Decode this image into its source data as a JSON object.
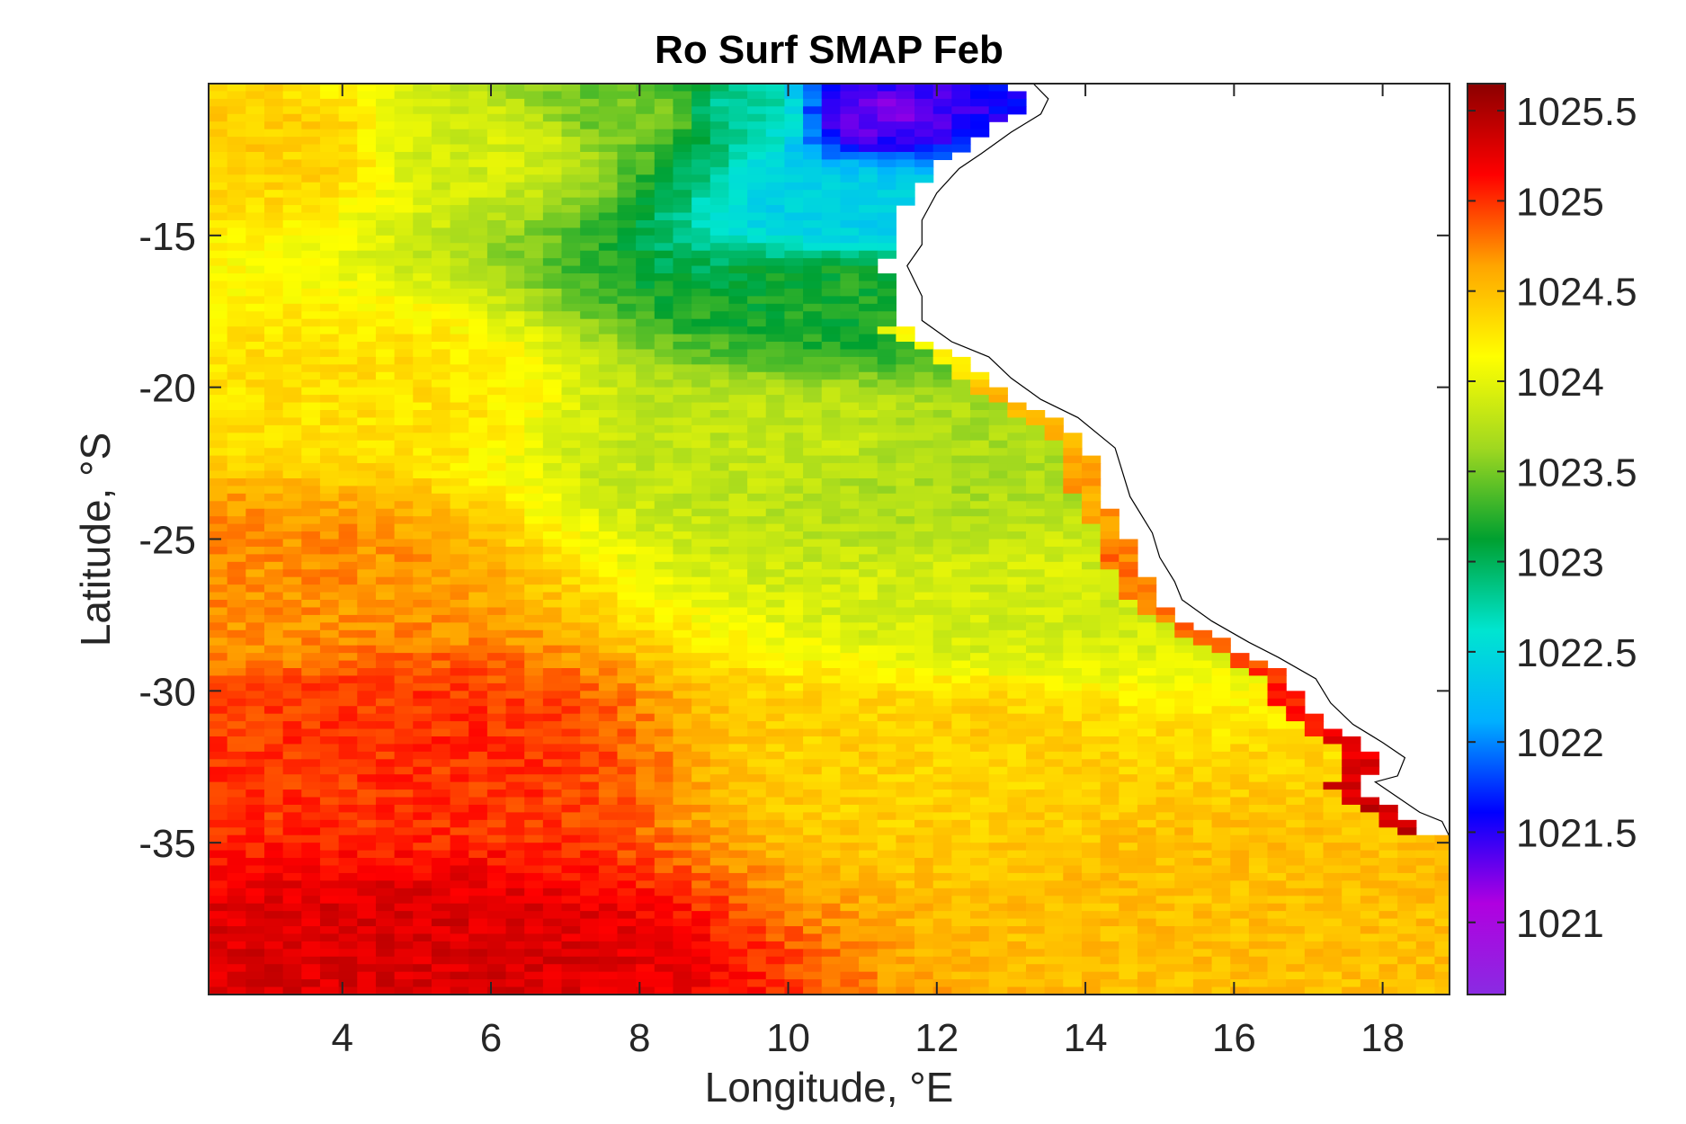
{
  "chart_data": {
    "type": "heatmap",
    "title": "Ro Surf SMAP Feb",
    "xlabel": "Longitude, °E",
    "ylabel": "Latitude, °S",
    "xlim": [
      2.2,
      18.9
    ],
    "ylim": [
      -40,
      -10
    ],
    "xticks": [
      4,
      6,
      8,
      10,
      12,
      14,
      16,
      18
    ],
    "xtick_labels": [
      "4",
      "6",
      "8",
      "10",
      "12",
      "14",
      "16",
      "18"
    ],
    "yticks": [
      -15,
      -20,
      -25,
      -30,
      -35
    ],
    "ytick_labels": [
      "-15",
      "-20",
      "-25",
      "-30",
      "-35"
    ],
    "colorbar": {
      "clim": [
        1020.6,
        1025.65
      ],
      "ticks": [
        1021,
        1021.5,
        1022,
        1022.5,
        1023,
        1023.5,
        1024,
        1024.5,
        1025,
        1025.5
      ],
      "tick_labels": [
        "1021",
        "1021.5",
        "1022",
        "1022.5",
        "1023",
        "1023.5",
        "1024",
        "1024.5",
        "1025",
        "1025.5"
      ],
      "colors": [
        "#8a2be2",
        "#b000e0",
        "#0000ff",
        "#00b0ff",
        "#00e5d0",
        "#00a030",
        "#a0d820",
        "#ffff00",
        "#ffa500",
        "#ff0000",
        "#8b0000"
      ]
    },
    "field_description_points": [
      {
        "lon": 3,
        "lat": -12,
        "value": 1024.4
      },
      {
        "lon": 6,
        "lat": -12,
        "value": 1023.9
      },
      {
        "lon": 8,
        "lat": -11,
        "value": 1023.5
      },
      {
        "lon": 9.5,
        "lat": -11,
        "value": 1022.8
      },
      {
        "lon": 11,
        "lat": -11,
        "value": 1021.3
      },
      {
        "lon": 11,
        "lat": -14,
        "value": 1022.4
      },
      {
        "lon": 11,
        "lat": -17,
        "value": 1023.2
      },
      {
        "lon": 10,
        "lat": -22,
        "value": 1023.8
      },
      {
        "lon": 12,
        "lat": -23,
        "value": 1023.7
      },
      {
        "lon": 4,
        "lat": -20,
        "value": 1024.3
      },
      {
        "lon": 3,
        "lat": -26,
        "value": 1024.7
      },
      {
        "lon": 13,
        "lat": -27,
        "value": 1023.9
      },
      {
        "lon": 5,
        "lat": -32,
        "value": 1025.0
      },
      {
        "lon": 12,
        "lat": -32,
        "value": 1024.4
      },
      {
        "lon": 5,
        "lat": -39,
        "value": 1025.3
      },
      {
        "lon": 16,
        "lat": -37,
        "value": 1024.5
      }
    ]
  }
}
